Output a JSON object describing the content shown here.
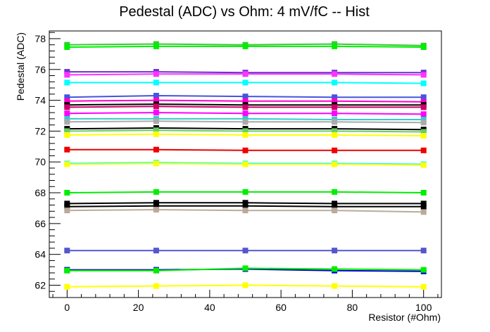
{
  "chart_data": {
    "type": "line",
    "title": "Pedestal (ADC) vs Ohm: 4 mV/fC -- Hist",
    "xlabel": "Resistor (#Ohm)",
    "ylabel": "Pedestal (ADC)",
    "xlim": [
      -5,
      105
    ],
    "ylim": [
      61.2,
      78.5
    ],
    "x_ticks": [
      0,
      20,
      40,
      60,
      80,
      100
    ],
    "y_ticks": [
      62,
      64,
      66,
      68,
      70,
      72,
      74,
      76,
      78
    ],
    "x": [
      0,
      25,
      50,
      75,
      100
    ],
    "grid": false,
    "legend": "none",
    "marker": "square",
    "series": [
      {
        "color": "#33cc33",
        "values": [
          77.6,
          77.65,
          77.6,
          77.65,
          77.55
        ]
      },
      {
        "color": "#00ee00",
        "values": [
          77.45,
          77.5,
          77.5,
          77.5,
          77.45
        ]
      },
      {
        "color": "#6633cc",
        "values": [
          75.85,
          75.85,
          75.8,
          75.8,
          75.8
        ]
      },
      {
        "color": "#ff33ff",
        "values": [
          75.65,
          75.7,
          75.7,
          75.7,
          75.65
        ]
      },
      {
        "color": "#00ffff",
        "values": [
          75.15,
          75.15,
          75.15,
          75.15,
          75.1
        ]
      },
      {
        "color": "#4455dd",
        "values": [
          74.2,
          74.3,
          74.25,
          74.2,
          74.2
        ]
      },
      {
        "color": "#ff00cc",
        "values": [
          73.95,
          74.0,
          73.95,
          73.95,
          73.9
        ]
      },
      {
        "color": "#000000",
        "values": [
          73.7,
          73.75,
          73.7,
          73.7,
          73.7
        ]
      },
      {
        "color": "#cc0066",
        "values": [
          73.55,
          73.6,
          73.55,
          73.55,
          73.55
        ]
      },
      {
        "color": "#ff00ff",
        "values": [
          73.15,
          73.2,
          73.15,
          73.15,
          73.1
        ]
      },
      {
        "color": "#33cccc",
        "values": [
          72.8,
          72.8,
          72.8,
          72.75,
          72.75
        ]
      },
      {
        "color": "#aaaaaa",
        "values": [
          72.6,
          72.65,
          72.6,
          72.6,
          72.55
        ]
      },
      {
        "color": "#000000",
        "values": [
          72.15,
          72.2,
          72.15,
          72.15,
          72.1
        ]
      },
      {
        "color": "#66cc66",
        "values": [
          72.0,
          72.05,
          72.0,
          72.0,
          71.95
        ]
      },
      {
        "color": "#ffff00",
        "values": [
          71.75,
          71.8,
          71.75,
          71.75,
          71.7
        ]
      },
      {
        "color": "#ee0000",
        "values": [
          70.8,
          70.8,
          70.75,
          70.75,
          70.75
        ]
      },
      {
        "color": "#00ffff",
        "values": [
          69.9,
          69.95,
          69.9,
          69.9,
          69.85
        ]
      },
      {
        "color": "#ffff00",
        "values": [
          69.85,
          69.9,
          69.85,
          69.85,
          69.8
        ]
      },
      {
        "color": "#00ee00",
        "values": [
          68.0,
          68.05,
          68.05,
          68.05,
          68.0
        ]
      },
      {
        "color": "#000000",
        "values": [
          67.3,
          67.35,
          67.35,
          67.3,
          67.3
        ]
      },
      {
        "color": "#000000",
        "values": [
          67.1,
          67.15,
          67.15,
          67.1,
          67.1
        ]
      },
      {
        "color": "#bbaa99",
        "values": [
          66.85,
          66.9,
          66.85,
          66.85,
          66.75
        ]
      },
      {
        "color": "#5555cc",
        "values": [
          64.25,
          64.25,
          64.25,
          64.25,
          64.25
        ]
      },
      {
        "color": "#0000cc",
        "values": [
          63.0,
          63.0,
          63.05,
          62.95,
          62.9
        ]
      },
      {
        "color": "#00ee00",
        "values": [
          62.95,
          62.95,
          63.1,
          63.05,
          63.0
        ]
      },
      {
        "color": "#ffff00",
        "values": [
          61.9,
          61.95,
          62.0,
          61.95,
          61.9
        ]
      }
    ]
  }
}
